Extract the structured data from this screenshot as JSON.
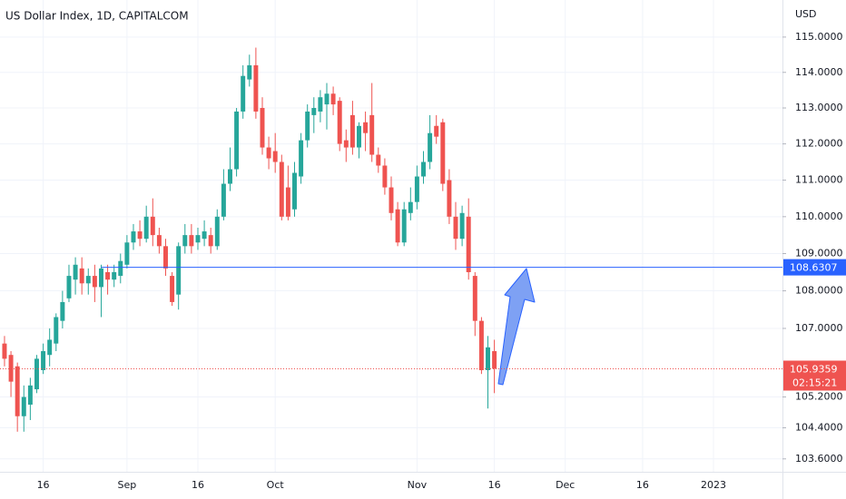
{
  "chart_data": {
    "type": "candlestick",
    "title": "US Dollar Index, 1D, CAPITALCOM",
    "currency": "USD",
    "up_color": "#26a69a",
    "down_color": "#ef5350",
    "log": true,
    "grid": true,
    "x": [
      0,
      1,
      2,
      3,
      4,
      5,
      6,
      7,
      8,
      9,
      10,
      11,
      12,
      13,
      14,
      15,
      16,
      17,
      18,
      19,
      20,
      21,
      22,
      23,
      24,
      25,
      26,
      27,
      28,
      29,
      30,
      31,
      32,
      33,
      34,
      35,
      36,
      37,
      38,
      39,
      40,
      41,
      42,
      43,
      44,
      45,
      46,
      47,
      48,
      49,
      50,
      51,
      52,
      53,
      54,
      55,
      56,
      57,
      58,
      59,
      60,
      61,
      62,
      63,
      64,
      65,
      66,
      67,
      68,
      69,
      70,
      71,
      72,
      73,
      74,
      75,
      76
    ],
    "open": [
      106.6,
      106.3,
      106.0,
      104.7,
      105.0,
      105.4,
      105.9,
      106.3,
      106.6,
      107.2,
      107.8,
      108.3,
      108.6,
      108.2,
      108.4,
      108.1,
      108.5,
      108.3,
      108.4,
      108.7,
      109.3,
      109.6,
      109.4,
      110.0,
      109.5,
      109.2,
      108.4,
      107.9,
      109.2,
      109.5,
      109.3,
      109.4,
      109.5,
      109.2,
      110.0,
      110.9,
      111.3,
      112.9,
      113.8,
      114.2,
      113.0,
      111.9,
      111.8,
      111.5,
      110.8,
      110.2,
      111.1,
      112.1,
      112.8,
      112.9,
      113.1,
      113.4,
      113.2,
      112.1,
      112.8,
      111.9,
      112.6,
      112.8,
      111.7,
      111.4,
      110.8,
      110.2,
      109.3,
      110.1,
      110.4,
      111.1,
      111.5,
      112.5,
      112.6,
      111.0,
      110.0,
      109.4,
      110.0,
      108.4,
      107.2,
      105.9,
      106.4
    ],
    "high": [
      106.8,
      106.4,
      106.1,
      105.5,
      105.7,
      106.3,
      106.6,
      107.0,
      107.4,
      108.0,
      108.7,
      108.9,
      108.9,
      108.6,
      108.7,
      108.7,
      108.7,
      108.7,
      109.0,
      109.5,
      109.8,
      109.9,
      110.3,
      110.5,
      109.7,
      109.4,
      108.5,
      109.3,
      109.8,
      109.8,
      109.7,
      109.9,
      109.7,
      110.2,
      111.3,
      111.9,
      113.0,
      114.2,
      114.5,
      114.7,
      113.3,
      112.2,
      112.3,
      111.7,
      111.4,
      111.5,
      112.3,
      113.1,
      113.3,
      113.5,
      113.7,
      113.6,
      113.3,
      112.4,
      113.2,
      112.6,
      112.9,
      113.7,
      111.9,
      111.6,
      111.1,
      110.4,
      110.4,
      110.8,
      111.4,
      111.8,
      112.8,
      112.8,
      112.7,
      111.3,
      110.4,
      110.3,
      110.5,
      108.5,
      107.3,
      106.8,
      106.7
    ],
    "low": [
      106.0,
      105.2,
      104.3,
      104.3,
      104.6,
      105.3,
      105.8,
      106.0,
      106.4,
      107.0,
      107.7,
      107.9,
      107.9,
      107.9,
      107.7,
      107.3,
      107.9,
      108.1,
      108.2,
      108.6,
      109.1,
      109.2,
      109.3,
      109.2,
      109.0,
      108.4,
      107.6,
      107.5,
      109.0,
      109.0,
      109.1,
      109.2,
      109.0,
      109.1,
      109.9,
      110.7,
      111.1,
      112.7,
      113.6,
      112.7,
      111.7,
      111.3,
      111.2,
      109.9,
      109.9,
      110.0,
      110.9,
      111.9,
      112.3,
      112.6,
      112.4,
      112.8,
      111.8,
      111.5,
      111.7,
      111.6,
      111.8,
      111.5,
      111.2,
      110.6,
      109.9,
      109.2,
      109.2,
      109.9,
      110.2,
      110.9,
      111.3,
      112.0,
      110.7,
      109.8,
      109.1,
      109.2,
      108.3,
      106.8,
      105.8,
      104.9,
      105.3
    ],
    "close": [
      106.2,
      105.6,
      104.7,
      105.2,
      105.5,
      106.2,
      106.4,
      106.7,
      107.3,
      107.7,
      108.4,
      108.7,
      108.2,
      108.4,
      108.1,
      108.6,
      108.3,
      108.5,
      108.8,
      109.3,
      109.6,
      109.4,
      110.0,
      109.5,
      109.2,
      108.6,
      107.7,
      109.2,
      109.5,
      109.2,
      109.5,
      109.6,
      109.2,
      110.0,
      110.9,
      111.3,
      112.9,
      113.9,
      114.2,
      112.9,
      111.9,
      111.6,
      111.5,
      110.0,
      110.0,
      111.2,
      112.1,
      112.9,
      113.0,
      113.3,
      113.4,
      113.1,
      112.0,
      111.9,
      111.9,
      112.5,
      112.3,
      111.7,
      111.4,
      110.8,
      110.1,
      109.3,
      110.2,
      110.4,
      111.1,
      111.5,
      112.3,
      112.2,
      110.9,
      110.0,
      109.4,
      110.1,
      108.5,
      107.2,
      105.9,
      106.5,
      105.94
    ],
    "xlim": [
      -0.7,
      120.7
    ],
    "xticks": [
      {
        "value": 6,
        "label": "16"
      },
      {
        "value": 19,
        "label": "Sep"
      },
      {
        "value": 30,
        "label": "16"
      },
      {
        "value": 42,
        "label": "Oct"
      },
      {
        "value": 64,
        "label": "Nov"
      },
      {
        "value": 76,
        "label": "16"
      },
      {
        "value": 87,
        "label": "Dec"
      },
      {
        "value": 99,
        "label": "16"
      },
      {
        "value": 110,
        "label": "2023"
      }
    ],
    "ylim": [
      103.27,
      116.06
    ],
    "yticks": [
      {
        "value": 115,
        "label": "115.0000"
      },
      {
        "value": 114,
        "label": "114.0000"
      },
      {
        "value": 113,
        "label": "113.0000"
      },
      {
        "value": 112,
        "label": "112.0000"
      },
      {
        "value": 111,
        "label": "111.0000"
      },
      {
        "value": 110,
        "label": "110.0000"
      },
      {
        "value": 109,
        "label": "109.0000"
      },
      {
        "value": 108,
        "label": "108.0000"
      },
      {
        "value": 107,
        "label": "107.0000"
      },
      {
        "value": 105.2,
        "label": "105.2000"
      },
      {
        "value": 104.4,
        "label": "104.4000"
      },
      {
        "value": 103.6,
        "label": "103.6000"
      }
    ],
    "hline": {
      "value": 108.6307,
      "start_x": 15,
      "color": "#2962ff"
    },
    "last_price": {
      "value": 105.9359,
      "countdown": "02:15:21",
      "color": "#ef5350"
    }
  }
}
